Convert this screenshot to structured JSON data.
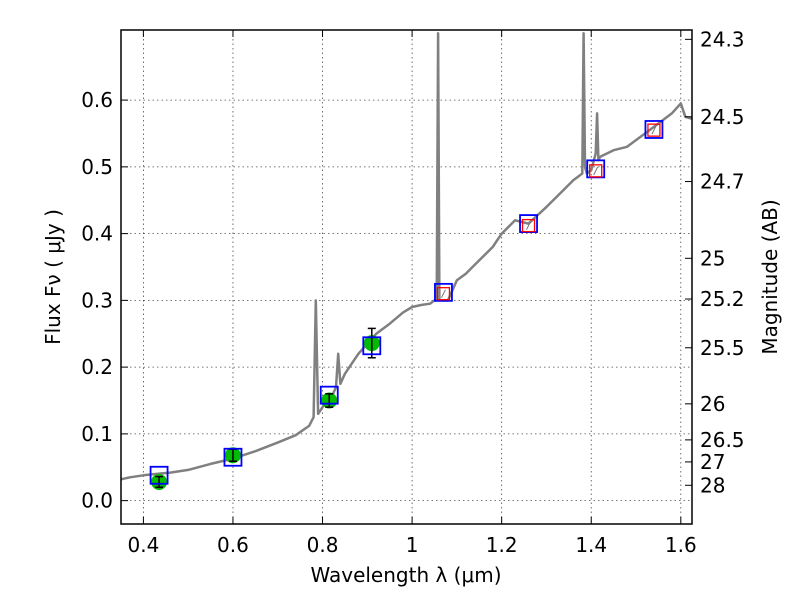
{
  "chart_data": {
    "type": "line",
    "xlabel": "Wavelength  λ (μm)",
    "ylabel": "Flux  Fν  ( μJy )",
    "y2label": "Magnitude (AB)",
    "xlim": [
      0.35,
      1.625
    ],
    "ylim": [
      -0.035,
      0.705
    ],
    "grid": true,
    "x_ticks": [
      0.4,
      0.6,
      0.8,
      1.0,
      1.2,
      1.4,
      1.6
    ],
    "x_tick_labels": [
      "0.4",
      "0.6",
      "0.8",
      "1",
      "1.2",
      "1.4",
      "1.6"
    ],
    "y_ticks": [
      0.0,
      0.1,
      0.2,
      0.3,
      0.4,
      0.5,
      0.6
    ],
    "y_tick_labels": [
      "0.0",
      "0.1",
      "0.2",
      "0.3",
      "0.4",
      "0.5",
      "0.6"
    ],
    "y2_ticks": [
      {
        "flux": 0.691,
        "label": "24.3"
      },
      {
        "flux": 0.575,
        "label": "24.5"
      },
      {
        "flux": 0.478,
        "label": "24.7"
      },
      {
        "flux": 0.363,
        "label": "25"
      },
      {
        "flux": 0.302,
        "label": "25.2"
      },
      {
        "flux": 0.229,
        "label": "25.5"
      },
      {
        "flux": 0.145,
        "label": "26"
      },
      {
        "flux": 0.091,
        "label": "26.5"
      },
      {
        "flux": 0.058,
        "label": "27"
      },
      {
        "flux": 0.023,
        "label": "28"
      }
    ],
    "spectrum": {
      "color": "#808080",
      "x": [
        0.35,
        0.37,
        0.4,
        0.43,
        0.46,
        0.5,
        0.55,
        0.6,
        0.65,
        0.7,
        0.74,
        0.77,
        0.78,
        0.785,
        0.79,
        0.8,
        0.81,
        0.82,
        0.83,
        0.835,
        0.84,
        0.85,
        0.86,
        0.87,
        0.88,
        0.9,
        0.92,
        0.95,
        0.98,
        1.0,
        1.02,
        1.04,
        1.05,
        1.055,
        1.058,
        1.061,
        1.065,
        1.08,
        1.1,
        1.12,
        1.15,
        1.18,
        1.2,
        1.23,
        1.26,
        1.3,
        1.33,
        1.36,
        1.38,
        1.383,
        1.386,
        1.39,
        1.4,
        1.41,
        1.413,
        1.416,
        1.42,
        1.45,
        1.48,
        1.5,
        1.52,
        1.55,
        1.58,
        1.6,
        1.61,
        1.625
      ],
      "y": [
        0.032,
        0.035,
        0.038,
        0.04,
        0.042,
        0.046,
        0.055,
        0.063,
        0.074,
        0.087,
        0.098,
        0.112,
        0.125,
        0.3,
        0.13,
        0.14,
        0.15,
        0.155,
        0.17,
        0.22,
        0.175,
        0.19,
        0.2,
        0.21,
        0.22,
        0.235,
        0.25,
        0.265,
        0.282,
        0.29,
        0.293,
        0.295,
        0.3,
        0.3,
        0.7,
        0.3,
        0.3,
        0.3,
        0.33,
        0.34,
        0.36,
        0.38,
        0.4,
        0.42,
        0.415,
        0.44,
        0.46,
        0.48,
        0.49,
        0.7,
        0.5,
        0.49,
        0.495,
        0.52,
        0.58,
        0.51,
        0.515,
        0.525,
        0.53,
        0.54,
        0.55,
        0.565,
        0.58,
        0.595,
        0.575,
        0.572
      ]
    },
    "photometry": {
      "color": "#00bb00",
      "x": [
        0.435,
        0.6,
        0.815,
        0.91
      ],
      "y": [
        0.028,
        0.068,
        0.15,
        0.236
      ],
      "err": [
        0.008,
        0.009,
        0.01,
        0.022
      ]
    },
    "model_boxes": {
      "color": "#0000ff",
      "x": [
        0.435,
        0.6,
        0.815,
        0.91,
        1.07,
        1.26,
        1.41,
        1.54
      ],
      "y": [
        0.038,
        0.065,
        0.158,
        0.232,
        0.312,
        0.415,
        0.497,
        0.556
      ]
    },
    "upper_limit_boxes": {
      "color": "#ff0000",
      "x": [
        1.07,
        1.26,
        1.41,
        1.54
      ],
      "y": [
        0.31,
        0.412,
        0.494,
        0.555
      ]
    }
  }
}
